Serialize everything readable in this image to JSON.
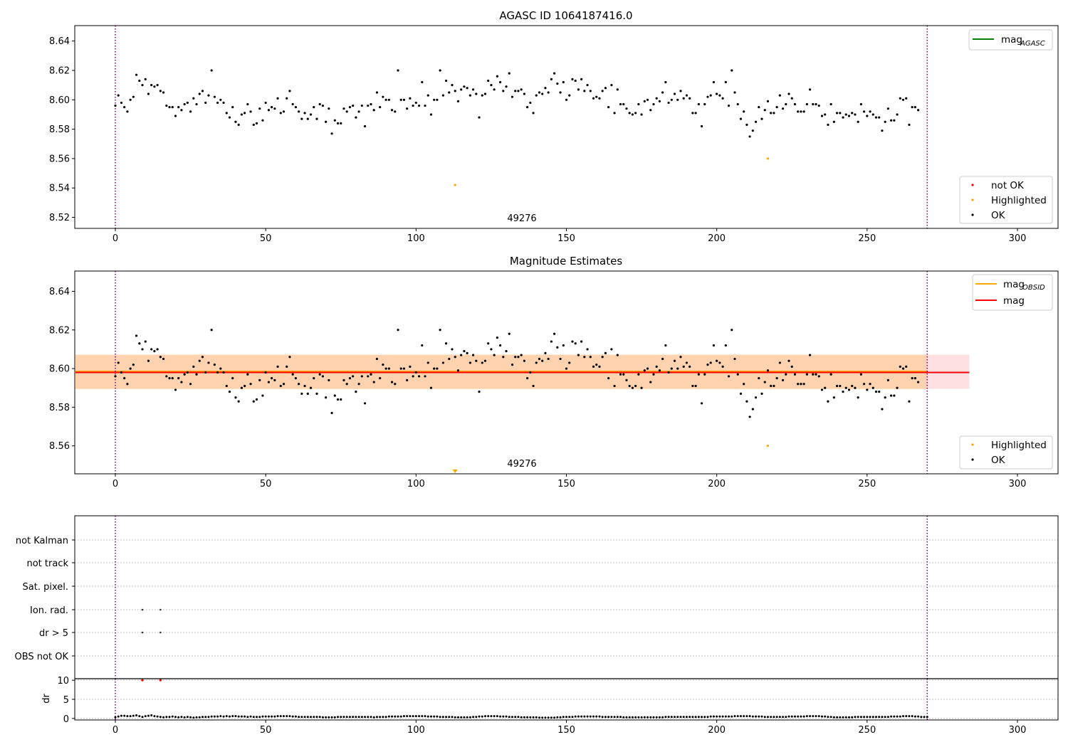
{
  "chart_data": [
    {
      "type": "scatter",
      "title": "AGASC ID 1064187416.0",
      "xlim": [
        -13.5,
        313.5
      ],
      "ylim": [
        8.5125,
        8.6505
      ],
      "xticks": [
        0,
        50,
        100,
        150,
        200,
        250,
        300
      ],
      "yticks": [
        8.52,
        8.54,
        8.56,
        8.58,
        8.6,
        8.62,
        8.64
      ],
      "vlines": [
        0,
        270
      ],
      "annotation": {
        "text": "49276",
        "x": 135
      },
      "legend_top": {
        "entries": [
          {
            "label": "mag",
            "sub": "AGASC",
            "color": "#008000"
          }
        ]
      },
      "legend_bottom": {
        "entries": [
          {
            "label": "not OK",
            "color": "#ff0000"
          },
          {
            "label": "Highlighted",
            "color": "#ffa500"
          },
          {
            "label": "OK",
            "color": "#000000"
          }
        ]
      },
      "highlighted": [
        {
          "x": 113,
          "y": 8.542
        },
        {
          "x": 217,
          "y": 8.56
        }
      ],
      "series_ok": {
        "x_start": 0,
        "x_step": 1,
        "y": [
          8.596,
          8.603,
          8.598,
          8.595,
          8.592,
          8.6,
          8.602,
          8.617,
          8.613,
          8.61,
          8.614,
          8.604,
          8.61,
          8.609,
          8.61,
          8.606,
          8.605,
          8.596,
          8.595,
          8.595,
          8.589,
          8.595,
          8.593,
          8.597,
          8.598,
          8.592,
          8.601,
          8.597,
          8.604,
          8.606,
          8.598,
          8.603,
          8.62,
          8.602,
          8.598,
          8.6,
          8.598,
          8.591,
          8.588,
          8.595,
          8.585,
          8.583,
          8.59,
          8.591,
          8.597,
          8.592,
          8.583,
          8.584,
          8.594,
          8.586,
          8.598,
          8.593,
          8.595,
          8.594,
          8.601,
          8.591,
          8.592,
          8.601,
          8.606,
          8.597,
          8.595,
          8.592,
          8.587,
          8.591,
          8.587,
          8.59,
          8.595,
          8.587,
          8.597,
          8.596,
          8.585,
          8.594,
          8.577,
          8.586,
          8.584,
          8.584,
          8.594,
          8.592,
          8.595,
          8.596,
          8.588,
          8.592,
          8.596,
          8.582,
          8.596,
          8.597,
          8.593,
          8.605,
          8.595,
          8.602,
          8.6,
          8.6,
          8.593,
          8.592,
          8.62,
          8.6,
          8.6,
          8.594,
          8.601,
          8.596,
          8.598,
          8.596,
          8.612,
          8.596,
          8.603,
          8.59,
          8.6,
          8.6,
          8.62,
          8.603,
          8.613,
          8.605,
          8.61,
          8.606,
          8.599,
          8.607,
          8.609,
          8.608,
          8.603,
          8.607,
          8.604,
          8.588,
          8.603,
          8.604,
          8.613,
          8.61,
          8.607,
          8.616,
          8.612,
          8.606,
          8.609,
          8.618,
          8.602,
          8.606,
          8.606,
          8.607,
          8.604,
          8.595,
          8.598,
          8.591,
          8.603,
          8.605,
          8.604,
          8.608,
          8.605,
          8.614,
          8.618,
          8.611,
          8.605,
          8.612,
          8.6,
          8.603,
          8.614,
          8.613,
          8.607,
          8.614,
          8.606,
          8.61,
          8.606,
          8.601,
          8.602,
          8.601,
          8.606,
          8.608,
          8.595,
          8.61,
          8.591,
          8.607,
          8.597,
          8.597,
          8.594,
          8.591,
          8.59,
          8.591,
          8.597,
          8.59,
          8.599,
          8.6,
          8.593,
          8.597,
          8.601,
          8.599,
          8.605,
          8.612,
          8.598,
          8.6,
          8.604,
          8.6,
          8.606,
          8.601,
          8.603,
          8.601,
          8.591,
          8.591,
          8.597,
          8.582,
          8.597,
          8.602,
          8.603,
          8.612,
          8.604,
          8.603,
          8.601,
          8.612,
          8.596,
          8.62,
          8.605,
          8.597,
          8.587,
          8.592,
          8.583,
          8.575,
          8.579,
          8.585,
          8.595,
          8.587,
          8.593,
          8.599,
          8.591,
          8.591,
          8.595,
          8.603,
          8.594,
          8.597,
          8.604,
          8.601,
          8.597,
          8.592,
          8.592,
          8.592,
          8.597,
          8.607,
          8.597,
          8.597,
          8.596,
          8.589,
          8.59,
          8.583,
          8.597,
          8.585,
          8.591,
          8.591,
          8.588,
          8.59,
          8.589,
          8.591,
          8.59,
          8.585,
          8.597,
          8.592,
          8.589,
          8.592,
          8.59,
          8.588,
          8.588,
          8.579,
          8.585,
          8.594,
          8.586,
          8.586,
          8.59,
          8.601,
          8.6,
          8.601,
          8.583,
          8.595,
          8.595,
          8.593
        ]
      }
    },
    {
      "type": "scatter",
      "title": "Magnitude Estimates",
      "xlim": [
        -13.5,
        313.5
      ],
      "ylim": [
        8.5455,
        8.6505
      ],
      "xticks": [
        0,
        50,
        100,
        150,
        200,
        250,
        300
      ],
      "yticks": [
        8.56,
        8.58,
        8.6,
        8.62,
        8.64
      ],
      "vlines": [
        0,
        270
      ],
      "annotation": {
        "text": "49276",
        "x": 135
      },
      "legend_top": {
        "entries": [
          {
            "label": "mag",
            "sub": "OBSID",
            "color": "#ffa500"
          },
          {
            "label": "mag",
            "color": "#ff0000"
          }
        ]
      },
      "legend_bottom": {
        "entries": [
          {
            "label": "Highlighted",
            "color": "#ffa500"
          },
          {
            "label": "OK",
            "color": "#000000"
          }
        ]
      },
      "mag": 8.598,
      "mag_band": [
        8.5895,
        8.6072
      ],
      "mag_obsid": 8.5985,
      "mag_obsid_band": [
        8.5893,
        8.6072
      ],
      "band_x_end": 284,
      "obsid_x_end": 270,
      "highlighted": [
        {
          "x": 217,
          "y": 8.56
        }
      ],
      "off_scale_marker": {
        "x": 113
      },
      "series_ok_ref": 0
    },
    {
      "type": "scatter",
      "title": "",
      "xlim": [
        -13.5,
        313.5
      ],
      "xticks": [
        0,
        50,
        100,
        150,
        200,
        250,
        300
      ],
      "vlines": [
        0,
        270
      ],
      "flag_rows": [
        "not Kalman",
        "not track",
        "Sat. pixel.",
        "Ion. rad.",
        "dr > 5",
        "OBS not OK"
      ],
      "flag_points": [
        {
          "row": "Ion. rad.",
          "x": 9
        },
        {
          "row": "Ion. rad.",
          "x": 15
        },
        {
          "row": "dr > 5",
          "x": 9
        },
        {
          "row": "dr > 5",
          "x": 15
        }
      ],
      "dr": {
        "ylabel": "dr",
        "ylim": [
          -0.4,
          10.4
        ],
        "yticks": [
          0,
          5,
          10
        ],
        "not_ok": [
          {
            "x": 9,
            "y": 10
          },
          {
            "x": 15,
            "y": 10
          }
        ],
        "values": [
          0.3,
          0.5,
          0.7,
          0.7,
          0.6,
          0.6,
          0.7,
          0.8,
          0.6,
          0.4,
          0.6,
          0.7,
          0.8,
          0.6,
          0.5,
          0.4,
          0.3,
          0.4,
          0.4,
          0.5,
          0.4,
          0.3,
          0.4,
          0.3,
          0.4,
          0.3,
          0.2,
          0.3,
          0.3,
          0.4,
          0.4,
          0.4,
          0.5,
          0.5,
          0.5,
          0.6,
          0.5,
          0.6,
          0.5,
          0.6,
          0.6,
          0.5,
          0.5,
          0.5,
          0.4,
          0.5,
          0.4,
          0.4,
          0.4,
          0.5,
          0.5,
          0.5,
          0.5,
          0.5,
          0.6,
          0.6,
          0.6,
          0.6,
          0.6,
          0.5,
          0.5,
          0.4,
          0.4,
          0.4,
          0.4,
          0.4,
          0.4,
          0.4,
          0.4,
          0.3,
          0.3,
          0.3,
          0.3,
          0.3,
          0.4,
          0.4,
          0.4,
          0.4,
          0.4,
          0.4,
          0.4,
          0.4,
          0.4,
          0.4,
          0.4,
          0.4,
          0.3,
          0.4,
          0.4,
          0.4,
          0.4,
          0.5,
          0.5,
          0.5,
          0.5,
          0.5,
          0.6,
          0.6,
          0.6,
          0.6,
          0.6,
          0.6,
          0.6,
          0.6,
          0.5,
          0.5,
          0.5,
          0.5,
          0.4,
          0.4,
          0.4,
          0.4,
          0.4,
          0.3,
          0.3,
          0.3,
          0.3,
          0.3,
          0.3,
          0.4,
          0.4,
          0.5,
          0.5,
          0.6,
          0.6,
          0.6,
          0.6,
          0.6,
          0.5,
          0.5,
          0.5,
          0.4,
          0.4,
          0.4,
          0.4,
          0.3,
          0.3,
          0.3,
          0.3,
          0.3,
          0.3,
          0.2,
          0.2,
          0.2,
          0.2,
          0.2,
          0.2,
          0.3,
          0.3,
          0.4,
          0.4,
          0.4,
          0.4,
          0.5,
          0.5,
          0.5,
          0.5,
          0.5,
          0.5,
          0.5,
          0.5,
          0.5,
          0.4,
          0.4,
          0.4,
          0.4,
          0.4,
          0.4,
          0.4,
          0.3,
          0.3,
          0.3,
          0.3,
          0.3,
          0.3,
          0.3,
          0.3,
          0.3,
          0.3,
          0.3,
          0.3,
          0.3,
          0.3,
          0.4,
          0.4,
          0.4,
          0.4,
          0.4,
          0.4,
          0.4,
          0.4,
          0.4,
          0.4,
          0.4,
          0.4,
          0.4,
          0.4,
          0.4,
          0.5,
          0.5,
          0.5,
          0.5,
          0.5,
          0.5,
          0.5,
          0.5,
          0.6,
          0.6,
          0.6,
          0.6,
          0.6,
          0.6,
          0.5,
          0.5,
          0.5,
          0.5,
          0.4,
          0.4,
          0.4,
          0.4,
          0.4,
          0.4,
          0.4,
          0.4,
          0.5,
          0.5,
          0.5,
          0.5,
          0.5,
          0.5,
          0.6,
          0.6,
          0.6,
          0.6,
          0.6,
          0.5,
          0.5,
          0.4,
          0.4,
          0.3,
          0.3,
          0.3,
          0.3,
          0.3,
          0.3,
          0.3,
          0.4,
          0.4,
          0.4,
          0.4,
          0.4,
          0.4,
          0.4,
          0.4,
          0.4,
          0.4,
          0.4,
          0.4,
          0.5,
          0.5,
          0.5,
          0.5,
          0.6,
          0.6,
          0.6,
          0.6,
          0.5,
          0.5,
          0.4,
          0.4,
          0.4
        ]
      }
    }
  ]
}
